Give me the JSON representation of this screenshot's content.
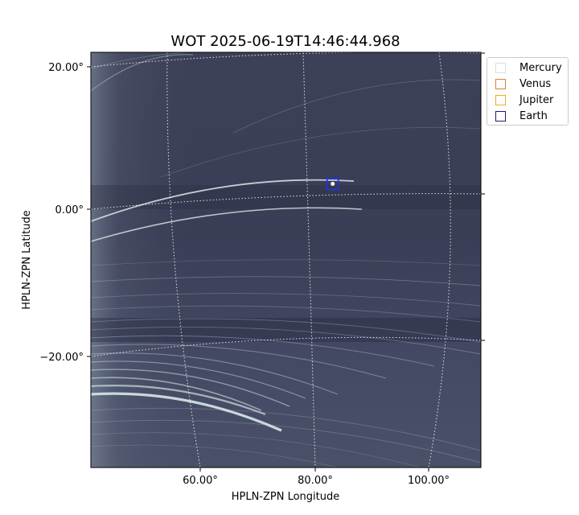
{
  "chart_data": {
    "type": "image",
    "title": "WOT 2025-06-19T14:46:44.968",
    "xlabel": "HPLN-ZPN Longitude",
    "ylabel": "HPLN-ZPN Latitude",
    "x_ticks": [
      "60.00°",
      "80.00°",
      "100.00°"
    ],
    "y_ticks": [
      "20.00°",
      "0.00°",
      "−20.00°"
    ],
    "x_tick_values": [
      60,
      80,
      100
    ],
    "y_tick_values": [
      20,
      0,
      -20
    ],
    "grid": true,
    "legend_placement": "outside-right",
    "legend": [
      {
        "name": "Mercury",
        "color": "#dddddd"
      },
      {
        "name": "Venus",
        "color": "#e07b39"
      },
      {
        "name": "Jupiter",
        "color": "#e8b020"
      },
      {
        "name": "Earth",
        "color": "#1a1a7a"
      }
    ],
    "markers": [
      {
        "name": "Earth",
        "lon": 83.2,
        "lat": 3.5,
        "color": "#2233dd"
      }
    ],
    "background_color": "#3a3e55",
    "streak_color": "#cfe0e0"
  }
}
